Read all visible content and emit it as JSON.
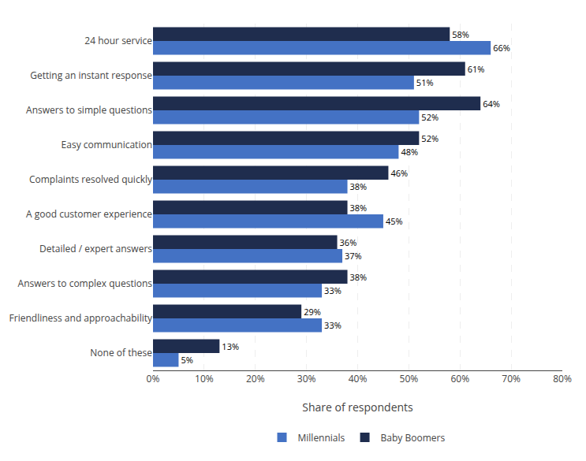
{
  "chart_data": {
    "type": "bar",
    "orientation": "horizontal",
    "categories": [
      "None of these",
      "Friendliness and approachability",
      "Answers to complex questions",
      "Detailed / expert answers",
      "A good customer experience",
      "Complaints resolved quickly",
      "Easy communication",
      "Answers to simple questions",
      "Getting an instant response",
      "24 hour service"
    ],
    "series": [
      {
        "name": "Millennials",
        "color": "#4472C4",
        "values": [
          5,
          33,
          33,
          37,
          45,
          38,
          48,
          52,
          51,
          66
        ],
        "value_labels": [
          "5%",
          "33%",
          "33%",
          "37%",
          "45%",
          "38%",
          "48%",
          "52%",
          "51%",
          "66%"
        ]
      },
      {
        "name": "Baby Boomers",
        "color": "#1F2D4E",
        "values": [
          13,
          29,
          38,
          36,
          38,
          46,
          52,
          64,
          61,
          58
        ],
        "value_labels": [
          "13%",
          "29%",
          "38%",
          "36%",
          "38%",
          "46%",
          "52%",
          "64%",
          "61%",
          "58%"
        ]
      }
    ],
    "xlabel": "Share of respondents",
    "xlim": [
      0,
      80
    ],
    "xticks": [
      {
        "value": 0,
        "label": "0%"
      },
      {
        "value": 10,
        "label": "10%"
      },
      {
        "value": 20,
        "label": "20%"
      },
      {
        "value": 30,
        "label": "30%"
      },
      {
        "value": 40,
        "label": "40%"
      },
      {
        "value": 50,
        "label": "50%"
      },
      {
        "value": 60,
        "label": "60%"
      },
      {
        "value": 70,
        "label": "70%"
      },
      {
        "value": 80,
        "label": "80%"
      }
    ],
    "grid": true,
    "data_labels": true,
    "legend": "bottom"
  }
}
